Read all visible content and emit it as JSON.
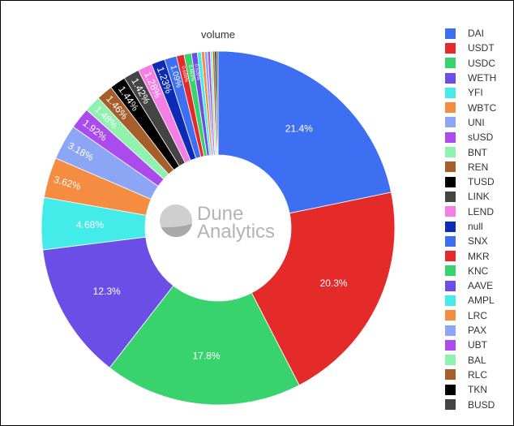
{
  "chart_data": {
    "type": "pie",
    "title": "volume",
    "hole": true,
    "legend_position": "right",
    "watermark": "Dune Analytics",
    "slices": [
      {
        "label": "DAI",
        "value": 21.4,
        "text": "21.4%",
        "color": "#3e6ff3"
      },
      {
        "label": "USDT",
        "value": 20.3,
        "text": "20.3%",
        "color": "#e52a2a"
      },
      {
        "label": "USDC",
        "value": 17.8,
        "text": "17.8%",
        "color": "#39d36e"
      },
      {
        "label": "WETH",
        "value": 12.3,
        "text": "12.3%",
        "color": "#6a4ee6"
      },
      {
        "label": "YFI",
        "value": 4.68,
        "text": "4.68%",
        "color": "#44ece9"
      },
      {
        "label": "WBTC",
        "value": 3.62,
        "text": "3.62%",
        "color": "#f48c42"
      },
      {
        "label": "UNI",
        "value": 3.18,
        "text": "3.18%",
        "color": "#8ca6f5"
      },
      {
        "label": "sUSD",
        "value": 1.92,
        "text": "1.92%",
        "color": "#ab4bee"
      },
      {
        "label": "BNT",
        "value": 1.48,
        "text": "1.48%",
        "color": "#8ff2ae"
      },
      {
        "label": "REN",
        "value": 1.46,
        "text": "1.46%",
        "color": "#a65e2b"
      },
      {
        "label": "TUSD",
        "value": 1.44,
        "text": "1.44%",
        "color": "#000000"
      },
      {
        "label": "LINK",
        "value": 1.42,
        "text": "1.42%",
        "color": "#444444"
      },
      {
        "label": "LEND",
        "value": 1.28,
        "text": "1.28%",
        "color": "#f57ee5"
      },
      {
        "label": "null",
        "value": 1.23,
        "text": "1.23%",
        "color": "#0d2bb5"
      },
      {
        "label": "SNX",
        "value": 1.09,
        "text": "1.09%",
        "color": "#3e6ff3"
      },
      {
        "label": "MKR",
        "value": 0.688,
        "text": "0.688%",
        "color": "#e52a2a"
      },
      {
        "label": "KNC",
        "value": 0.663,
        "text": "0.663%",
        "color": "#39d36e"
      },
      {
        "label": "AAVE",
        "value": 0.528,
        "text": "0.528%",
        "color": "#6a4ee6"
      },
      {
        "label": "AMPL",
        "value": 0.35,
        "text": "",
        "color": "#44ece9"
      },
      {
        "label": "LRC",
        "value": 0.3,
        "text": "",
        "color": "#f48c42"
      },
      {
        "label": "PAX",
        "value": 0.27,
        "text": "",
        "color": "#8ca6f5"
      },
      {
        "label": "UBT",
        "value": 0.24,
        "text": "",
        "color": "#ab4bee"
      },
      {
        "label": "BAL",
        "value": 0.21,
        "text": "",
        "color": "#8ff2ae"
      },
      {
        "label": "RLC",
        "value": 0.18,
        "text": "",
        "color": "#a65e2b"
      },
      {
        "label": "TKN",
        "value": 0.16,
        "text": "",
        "color": "#000000"
      },
      {
        "label": "BUSD",
        "value": 0.14,
        "text": "",
        "color": "#444444"
      }
    ]
  }
}
